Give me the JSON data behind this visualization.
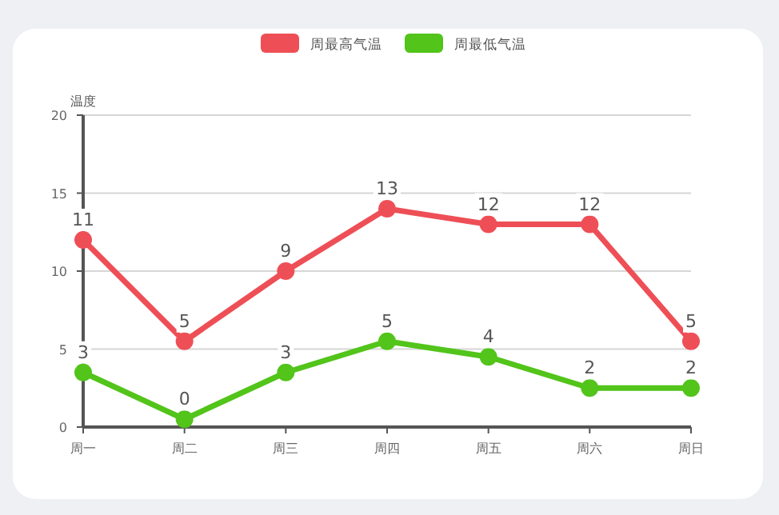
{
  "chart_data": {
    "type": "line",
    "ylabel": "温度",
    "categories": [
      "周一",
      "周二",
      "周三",
      "周四",
      "周五",
      "周六",
      "周日"
    ],
    "series": [
      {
        "name": "周最高气温",
        "color": "#ee4f56",
        "values": [
          12,
          5.5,
          10,
          14,
          13,
          13,
          5.5
        ]
      },
      {
        "name": "周最低气温",
        "color": "#52c41a",
        "values": [
          3.5,
          0.5,
          3.5,
          5.5,
          4.5,
          2.5,
          2.5
        ]
      }
    ],
    "annotations": [
      {
        "text": "11",
        "x": "周一",
        "y": 12
      },
      {
        "text": "5",
        "x": "周二",
        "y": 5.5
      },
      {
        "text": "9",
        "x": "周三",
        "y": 10
      },
      {
        "text": "13",
        "x": "周四",
        "y": 14
      },
      {
        "text": "12",
        "x": "周五",
        "y": 13
      },
      {
        "text": "12",
        "x": "周六",
        "y": 13
      },
      {
        "text": "5",
        "x": "周日",
        "y": 5.5
      },
      {
        "text": "3",
        "x": "周一",
        "y": 3.5
      },
      {
        "text": "0",
        "x": "周二",
        "y": 0.5
      },
      {
        "text": "3",
        "x": "周三",
        "y": 3.5
      },
      {
        "text": "5",
        "x": "周四",
        "y": 5.5
      },
      {
        "text": "4",
        "x": "周五",
        "y": 4.5
      },
      {
        "text": "2",
        "x": "周六",
        "y": 2.5
      },
      {
        "text": "2",
        "x": "周日",
        "y": 2.5
      }
    ],
    "ylim": [
      0,
      20
    ],
    "yticks": [
      0,
      5,
      10,
      15,
      20
    ],
    "grid": "y",
    "legend": "top",
    "marker": "circle",
    "line_style": "solid"
  }
}
